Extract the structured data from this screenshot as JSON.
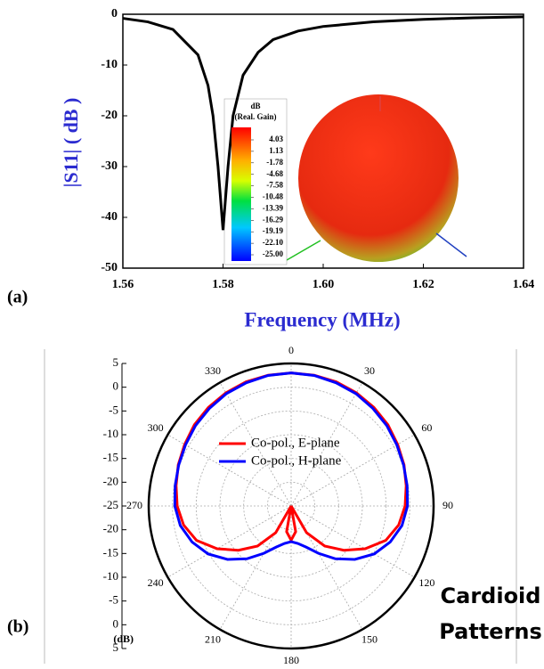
{
  "chart_data": [
    {
      "type": "line",
      "label": "(a)",
      "xlabel": "Frequency (MHz)",
      "ylabel": "|S11| ( dB )",
      "x": [
        1.56,
        1.565,
        1.57,
        1.575,
        1.577,
        1.578,
        1.579,
        1.58,
        1.581,
        1.582,
        1.584,
        1.587,
        1.59,
        1.595,
        1.6,
        1.61,
        1.62,
        1.63,
        1.64
      ],
      "values": [
        -0.8,
        -1.5,
        -3,
        -8,
        -14,
        -20,
        -30,
        -42.5,
        -30,
        -20,
        -12,
        -7.5,
        -5,
        -3.3,
        -2.4,
        -1.5,
        -1.0,
        -0.7,
        -0.5
      ],
      "color": "#000000",
      "xlim": [
        1.56,
        1.64
      ],
      "xticks": [
        1.56,
        1.58,
        {
          "value": 1.6,
          "label": "1.60"
        },
        1.62,
        1.64
      ],
      "ylim": [
        -50,
        0
      ],
      "yticks": [
        0,
        -10,
        -20,
        -30,
        -40,
        -50
      ],
      "colorbar": {
        "title": [
          "dB",
          "(Real. Gain)"
        ],
        "ticks": [
          4.03,
          1.13,
          -1.78,
          -4.68,
          -7.58,
          -10.48,
          -13.39,
          -16.29,
          -19.19,
          {
            "value": -22.1,
            "label": "-22.10"
          },
          {
            "value": -25,
            "label": "-25.00"
          }
        ]
      }
    },
    {
      "type": "polar",
      "label": "(b)",
      "rlabel": "(dB)",
      "annotation": [
        "Cardioid",
        "Patterns"
      ],
      "theta": [
        0,
        10,
        20,
        30,
        40,
        50,
        60,
        70,
        80,
        90,
        100,
        110,
        120,
        130,
        140,
        150,
        160,
        170,
        180,
        190,
        200,
        210,
        220,
        230,
        240,
        250,
        260,
        270,
        280,
        290,
        300,
        310,
        320,
        330,
        340,
        350
      ],
      "series": [
        {
          "name": "Co-pol., E-plane",
          "color": "#ff0000",
          "values": [
            3,
            2.95,
            2.8,
            2.5,
            2.1,
            1.6,
            0.9,
            0.3,
            -0.4,
            -1,
            -2,
            -3.8,
            -7,
            -10.5,
            -14,
            -18.5,
            -25,
            -19.5,
            -17.8,
            -19.5,
            -25,
            -18.5,
            -14,
            -10.5,
            -7,
            -3.8,
            -2,
            -1,
            -0.4,
            0.3,
            0.9,
            1.6,
            2.1,
            2.5,
            2.8,
            2.95
          ]
        },
        {
          "name": "Co-pol., H-plane",
          "color": "#0000ff",
          "values": [
            3,
            2.9,
            2.6,
            2.3,
            1.8,
            1.3,
            0.7,
            0.2,
            -0.2,
            -0.5,
            -1.3,
            -2.8,
            -4.8,
            -7.5,
            -10.5,
            -13.5,
            -15.8,
            -17,
            -17.5,
            -17,
            -15.8,
            -13.5,
            -10.5,
            -7.5,
            -4.8,
            -2.8,
            -1.3,
            -0.5,
            -0.2,
            0.2,
            0.7,
            1.3,
            1.8,
            2.3,
            2.6,
            2.9
          ]
        }
      ],
      "rlim": [
        -25,
        5
      ],
      "rticks": [
        -25,
        -20,
        -15,
        -10,
        -5,
        0,
        5
      ],
      "thetaticks": [
        0,
        30,
        60,
        90,
        120,
        150,
        180,
        210,
        240,
        270,
        300,
        330
      ]
    }
  ]
}
